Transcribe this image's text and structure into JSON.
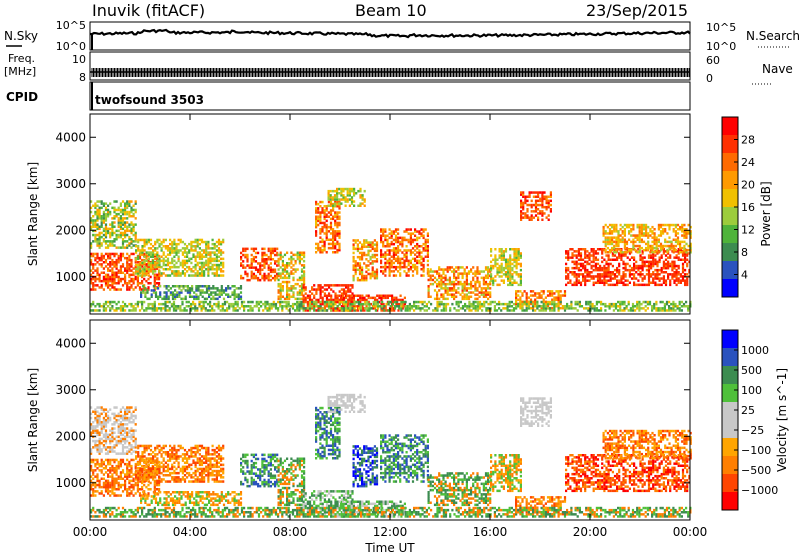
{
  "header": {
    "station": "Inuvik (fitACF)",
    "beam": "Beam 10",
    "date": "23/Sep/2015"
  },
  "top_panels": {
    "nsky": {
      "label": "N.Sky",
      "left_ticks": [
        "10^5",
        "10^0"
      ],
      "right_ticks": [
        "10^5",
        "10^0"
      ],
      "right_label": "N.Search"
    },
    "freq": {
      "label_line1": "Freq.",
      "label_line2": "[MHz]",
      "left_ticks": [
        "10",
        "8"
      ],
      "right_ticks": [
        "60",
        "0"
      ],
      "right_label": "Nave"
    },
    "cpid": {
      "label": "CPID",
      "program": "twofsound 3503"
    }
  },
  "colors": {
    "power_scale": [
      "#0000ff",
      "#2a52be",
      "#3c8c50",
      "#4fb33a",
      "#9ccc3c",
      "#f0c000",
      "#ff9a00",
      "#ff6a00",
      "#ff3000",
      "#ff0000"
    ],
    "velocity_scale": [
      "#ff0000",
      "#ff4500",
      "#ff7f00",
      "#ffa500",
      "#c8c8c8",
      "#c8c8c8",
      "#4fc03a",
      "#3c8c50",
      "#2a52be",
      "#0000ff"
    ]
  },
  "chart_data": [
    {
      "type": "heatmap",
      "name": "power",
      "ylabel": "Slant Range [km]",
      "xlabel": "",
      "xlim": [
        0,
        24
      ],
      "ylim": [
        200,
        4500
      ],
      "x_ticks": [
        "00:00",
        "04:00",
        "08:00",
        "12:00",
        "16:00",
        "20:00",
        "00:00"
      ],
      "y_ticks": [
        1000,
        2000,
        3000,
        4000
      ],
      "colorbar": {
        "label": "Power [dB]",
        "ticks": [
          "28",
          "24",
          "20",
          "16",
          "12",
          "8",
          "4"
        ],
        "range": [
          0,
          30
        ]
      }
    },
    {
      "type": "heatmap",
      "name": "velocity",
      "ylabel": "Slant Range [km]",
      "xlabel": "Time UT",
      "xlim": [
        0,
        24
      ],
      "ylim": [
        200,
        4500
      ],
      "x_ticks": [
        "00:00",
        "04:00",
        "08:00",
        "12:00",
        "16:00",
        "20:00",
        "00:00"
      ],
      "y_ticks": [
        1000,
        2000,
        3000,
        4000
      ],
      "colorbar": {
        "label": "Velocity [m s^-1]",
        "ticks": [
          "1000",
          "500",
          "100",
          "25",
          "−25",
          "−100",
          "−500",
          "−1000"
        ]
      }
    }
  ]
}
